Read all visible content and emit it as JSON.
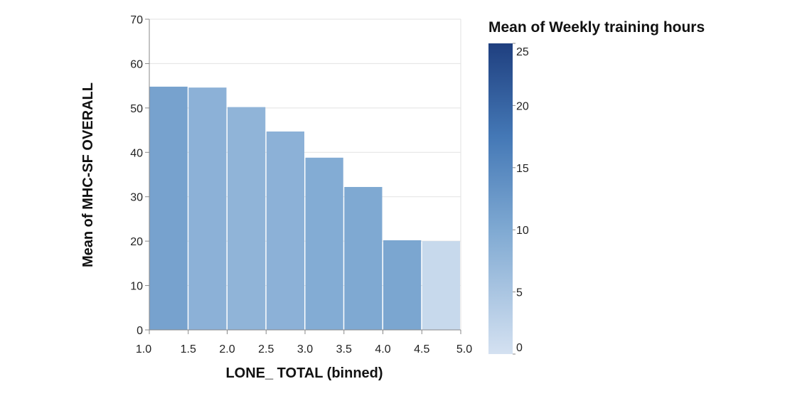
{
  "chart_data": {
    "type": "bar",
    "title": "",
    "xlabel": "LONE_ TOTAL (binned)",
    "ylabel": "Mean of MHC-SF OVERALL",
    "x_ticks": [
      "1.0",
      "1.5",
      "2.0",
      "2.5",
      "3.0",
      "3.5",
      "4.0",
      "4.5",
      "5.0"
    ],
    "y_ticks": [
      0,
      10,
      20,
      30,
      40,
      50,
      60,
      70
    ],
    "ylim": [
      0,
      70
    ],
    "xlim": [
      1.0,
      5.0
    ],
    "grid": true,
    "bins": [
      {
        "x0": 1.0,
        "x1": 1.5,
        "value": 54.8,
        "color_value": 11.0
      },
      {
        "x0": 1.5,
        "x1": 2.0,
        "value": 54.6,
        "color_value": 8.5
      },
      {
        "x0": 2.0,
        "x1": 2.5,
        "value": 50.2,
        "color_value": 8.0
      },
      {
        "x0": 2.5,
        "x1": 3.0,
        "value": 44.7,
        "color_value": 8.5
      },
      {
        "x0": 3.0,
        "x1": 3.5,
        "value": 38.8,
        "color_value": 9.5
      },
      {
        "x0": 3.5,
        "x1": 4.0,
        "value": 32.2,
        "color_value": 10.0
      },
      {
        "x0": 4.0,
        "x1": 4.5,
        "value": 20.2,
        "color_value": 10.5
      },
      {
        "x0": 4.5,
        "x1": 5.0,
        "value": 20.0,
        "color_value": 1.5
      }
    ],
    "legend": {
      "title": "Mean of Weekly training hours",
      "position": "right",
      "ticks": [
        25,
        20,
        15,
        10,
        5,
        0
      ],
      "range": [
        0,
        25
      ],
      "colors": [
        "#d4e1f1",
        "#1f3f7f"
      ]
    }
  }
}
